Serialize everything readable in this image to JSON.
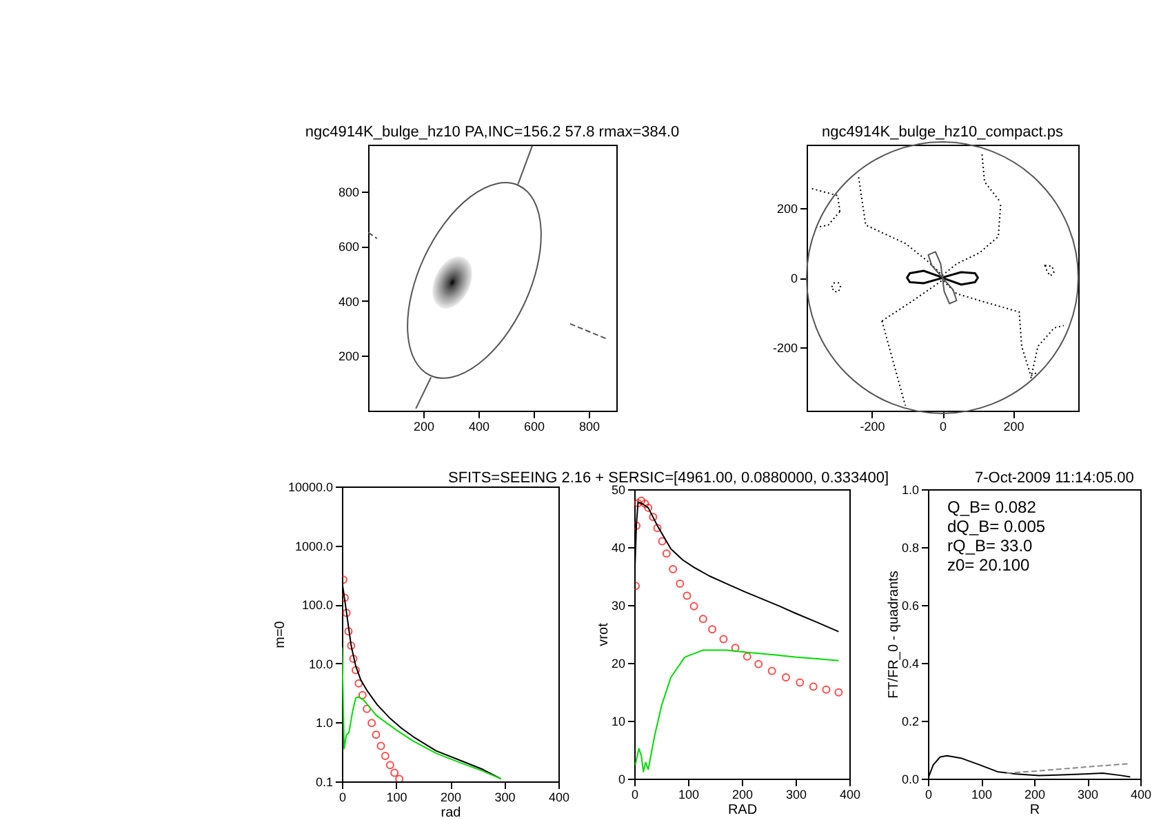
{
  "chart_data": [
    {
      "type": "line",
      "title": "ngc4914K_bulge_hz10 PA,INC=156.2 57.8 rmax=384.0",
      "xlim": [
        0,
        900
      ],
      "ylim": [
        0,
        970
      ],
      "xticks": [
        200,
        400,
        600,
        800
      ],
      "yticks": [
        200,
        400,
        600,
        800
      ],
      "series": [
        {
          "color": "#555555",
          "x": [
            543,
            595
          ],
          "values": [
            825,
            966
          ]
        },
        {
          "color": "#555555",
          "x": [
            173,
            228
          ],
          "values": [
            8,
            122
          ]
        },
        {
          "color": "#555555",
          "line_style": "dashed",
          "x": [
            0,
            32
          ],
          "values": [
            650,
            628
          ]
        },
        {
          "color": "#555555",
          "line_style": "dashed",
          "x": [
            732,
            865
          ],
          "values": [
            317,
            262
          ]
        }
      ]
    },
    {
      "type": "line",
      "title": "ngc4914K_bulge_hz10_compact.ps",
      "xlim": [
        -384,
        384
      ],
      "ylim": [
        -384,
        384
      ],
      "xticks": [
        -200,
        0,
        200
      ],
      "yticks": [
        -200,
        0,
        200
      ],
      "series": [
        {
          "color": "#000000",
          "line_style": "dotted",
          "x": [
            -237,
            -217,
            -105,
            -40,
            0,
            40,
            105,
            158,
            165
          ],
          "values": [
            290,
            152,
            99,
            46,
            7,
            40,
            72,
            119,
            217
          ]
        },
        {
          "color": "#000000",
          "line_style": "dotted",
          "x": [
            112,
            119,
            165
          ],
          "values": [
            356,
            277,
            217
          ]
        },
        {
          "color": "#000000",
          "line_style": "dotted",
          "x": [
            -171,
            -105
          ],
          "values": [
            -125,
            -369
          ]
        },
        {
          "color": "#000000",
          "line_style": "dotted",
          "x": [
            -171,
            -92,
            -26,
            0,
            40,
            105,
            217,
            224,
            250,
            265
          ],
          "values": [
            -125,
            -72,
            -26,
            -7,
            -46,
            -66,
            -99,
            -198,
            -283,
            -275
          ]
        },
        {
          "color": "#000000",
          "line_style": "dotted",
          "x": [
            -358,
            -323,
            -290
          ],
          "values": [
            145,
            152,
            191
          ]
        },
        {
          "color": "#000000",
          "line_style": "dotted",
          "x": [
            -369,
            -296,
            -290
          ],
          "values": [
            257,
            237,
            191
          ]
        },
        {
          "color": "#000000",
          "line_style": "dotted",
          "x": [
            250,
            270,
            316,
            343
          ],
          "values": [
            -290,
            -198,
            -145,
            -138
          ]
        }
      ]
    },
    {
      "type": "line",
      "log": true,
      "xlabel": "rad",
      "ylabel": "m=0",
      "xlim": [
        0,
        400
      ],
      "ylim": [
        0.1,
        10000
      ],
      "xticks": [
        0,
        100,
        200,
        300,
        400
      ],
      "yticks": [
        {
          "value": 0.1,
          "label": "0.1"
        },
        {
          "value": 1,
          "label": "1.0"
        },
        {
          "value": 10,
          "label": "10.0"
        },
        {
          "value": 100,
          "label": "100.0"
        },
        {
          "value": 1000,
          "label": "1000.0"
        },
        {
          "value": 10000,
          "label": "10000.0"
        }
      ],
      "series": [
        {
          "type": "scatter",
          "color": "#ff0000",
          "x": [
            2.5,
            5,
            8.5,
            12,
            17,
            21,
            25.5,
            31,
            38,
            46,
            55,
            63,
            72,
            80,
            89,
            97,
            106
          ],
          "values": [
            263,
            130,
            72,
            35,
            20,
            12,
            7.7,
            4.6,
            2.9,
            1.7,
            0.98,
            0.62,
            0.4,
            0.27,
            0.19,
            0.14,
            0.11
          ]
        },
        {
          "color": "#000000",
          "x": [
            0,
            4,
            8.5,
            17,
            25.5,
            35,
            47,
            65,
            89,
            110,
            132,
            174,
            217,
            260,
            294
          ],
          "values": [
            250,
            140,
            72,
            20,
            9,
            5.2,
            3.4,
            2,
            1.17,
            0.8,
            0.57,
            0.33,
            0.23,
            0.16,
            0.11
          ]
        },
        {
          "color": "#00dd00",
          "x": [
            0,
            2,
            4,
            8,
            13,
            20,
            25.5,
            30,
            40,
            64,
            100,
            132,
            174,
            217,
            260,
            294
          ],
          "values": [
            18.7,
            3,
            0.36,
            0.6,
            0.68,
            1.6,
            2.6,
            2.7,
            2.4,
            1.3,
            0.75,
            0.48,
            0.3,
            0.21,
            0.15,
            0.11
          ]
        }
      ]
    },
    {
      "type": "line",
      "xlabel": "RAD",
      "ylabel": "vrot",
      "xlim": [
        0,
        400
      ],
      "ylim": [
        0,
        50
      ],
      "xticks": [
        0,
        100,
        200,
        300,
        400
      ],
      "yticks": [
        0,
        10,
        20,
        30,
        40,
        50
      ],
      "annotations": [
        "SFITS=SEEING 2.16 + SERSIC=[4961.00, 0.0880000, 0.333400]",
        "7-Oct-2009 11:14:05.00"
      ],
      "series": [
        {
          "type": "scatter",
          "color": "#ff0000",
          "x": [
            2.6,
            4,
            7,
            13,
            20,
            26,
            35,
            43,
            52,
            60,
            72,
            85,
            98,
            111,
            128,
            145,
            166,
            188,
            210,
            231,
            256,
            282,
            308,
            333,
            357,
            380
          ],
          "values": [
            33.3,
            43.7,
            47.6,
            48,
            47.5,
            46.8,
            45.2,
            43.3,
            41,
            38.9,
            36.2,
            33.7,
            31.6,
            29.8,
            27.6,
            25.8,
            24.1,
            22.6,
            21.1,
            19.8,
            18.6,
            17.5,
            16.6,
            15.9,
            15.4,
            14.9
          ]
        },
        {
          "color": "#000000",
          "x": [
            0,
            4,
            7,
            15,
            26,
            43,
            68,
            90,
            111,
            140,
            171,
            205,
            239,
            270,
            299,
            340,
            380
          ],
          "values": [
            33,
            44,
            47.8,
            47.5,
            46.8,
            43.7,
            39.7,
            37.8,
            36.5,
            35,
            33.7,
            32.3,
            31,
            29.8,
            28.6,
            27,
            25.4
          ]
        },
        {
          "color": "#00dd00",
          "x": [
            2,
            8.5,
            13,
            17,
            21,
            26,
            38,
            51,
            68,
            94,
            128,
            171,
            214,
            260,
            299,
            340,
            380
          ],
          "values": [
            2.4,
            5.2,
            4,
            1.2,
            2.8,
            1.6,
            7.5,
            12.7,
            17.5,
            21,
            22.2,
            22.2,
            21.8,
            21.4,
            21,
            20.7,
            20.4
          ]
        }
      ]
    },
    {
      "type": "line",
      "xlabel": "R",
      "ylabel": "FT/FR_0 - quadrants",
      "xlim": [
        0,
        400
      ],
      "ylim": [
        0,
        1
      ],
      "xticks": [
        0,
        100,
        200,
        300,
        400
      ],
      "yticks": [
        {
          "value": 0,
          "label": "0.0"
        },
        {
          "value": 0.2,
          "label": "0.2"
        },
        {
          "value": 0.4,
          "label": "0.4"
        },
        {
          "value": 0.6,
          "label": "0.6"
        },
        {
          "value": 0.8,
          "label": "0.8"
        },
        {
          "value": 1,
          "label": "1.0"
        }
      ],
      "annotations": [
        "Q_B=  0.082",
        "dQ_B=  0.005",
        "rQ_B=   33.0",
        "z0= 20.100"
      ],
      "series": [
        {
          "color": "#000000",
          "x": [
            0,
            10,
            23,
            36,
            62,
            97,
            131,
            166,
            209,
            252,
            295,
            329,
            364,
            381
          ],
          "values": [
            0,
            0.048,
            0.075,
            0.079,
            0.071,
            0.048,
            0.024,
            0.016,
            0.011,
            0.013,
            0.016,
            0.019,
            0.011,
            0.006
          ]
        },
        {
          "color": "#888888",
          "line_style": "dashed",
          "x": [
            148,
            209,
            295,
            381
          ],
          "values": [
            0.019,
            0.027,
            0.04,
            0.052
          ]
        }
      ]
    }
  ]
}
